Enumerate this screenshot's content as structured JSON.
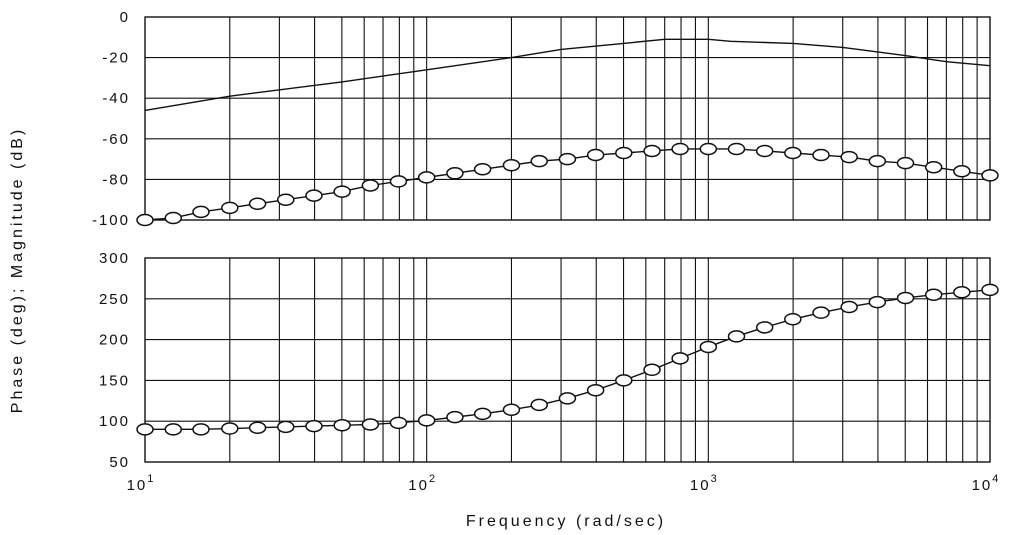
{
  "chart_data": [
    {
      "type": "line",
      "panel": "magnitude",
      "x_scale": "log",
      "xlim": [
        10,
        10000
      ],
      "ylim": [
        -100,
        0
      ],
      "y_ticks": [
        "0",
        "-20",
        "-40",
        "-60",
        "-80",
        "-100"
      ],
      "grid": true,
      "series": [
        {
          "style": "line",
          "x": [
            10,
            20,
            50,
            100,
            200,
            300,
            500,
            700,
            800,
            1000,
            1200,
            2000,
            3000,
            5000,
            7000,
            10000
          ],
          "values": [
            -46,
            -39,
            -32,
            -26,
            -20,
            -16,
            -13,
            -11,
            -11,
            -11,
            -12,
            -13,
            -15,
            -19,
            -22,
            -24
          ]
        },
        {
          "style": "circle-markers",
          "x": [
            10,
            12.6,
            15.8,
            20,
            25.1,
            31.6,
            39.8,
            50.1,
            63.1,
            79.4,
            100,
            126,
            158,
            200,
            251,
            316,
            398,
            501,
            631,
            794,
            1000,
            1259,
            1585,
            1995,
            2512,
            3162,
            3981,
            5012,
            6310,
            7943,
            10000
          ],
          "values": [
            -100,
            -99,
            -96,
            -94,
            -92,
            -90,
            -88,
            -86,
            -83,
            -81,
            -79,
            -77,
            -75,
            -73,
            -71,
            -70,
            -68,
            -67,
            -66,
            -65,
            -65,
            -65,
            -66,
            -67,
            -68,
            -69,
            -71,
            -72,
            -74,
            -76,
            -78
          ]
        }
      ]
    },
    {
      "type": "line",
      "panel": "phase",
      "x_scale": "log",
      "xlim": [
        10,
        10000
      ],
      "ylim": [
        50,
        300
      ],
      "y_ticks": [
        "300",
        "250",
        "200",
        "150",
        "100",
        "50"
      ],
      "x_ticks": [
        {
          "base": "10",
          "exp": "1"
        },
        {
          "base": "10",
          "exp": "2"
        },
        {
          "base": "10",
          "exp": "3"
        },
        {
          "base": "10",
          "exp": "4"
        }
      ],
      "xlabel": "Frequency (rad/sec)",
      "grid": true,
      "series": [
        {
          "style": "line-with-circle-markers",
          "x": [
            10,
            12.6,
            15.8,
            20,
            25.1,
            31.6,
            39.8,
            50.1,
            63.1,
            79.4,
            100,
            126,
            158,
            200,
            251,
            316,
            398,
            501,
            631,
            794,
            1000,
            1259,
            1585,
            1995,
            2512,
            3162,
            3981,
            5012,
            6310,
            7943,
            10000
          ],
          "values": [
            90,
            90,
            90,
            91,
            92,
            93,
            94,
            95,
            96,
            98,
            101,
            105,
            109,
            114,
            120,
            128,
            138,
            150,
            163,
            177,
            191,
            204,
            215,
            225,
            233,
            240,
            246,
            251,
            255,
            258,
            261
          ]
        }
      ]
    }
  ],
  "ylabel": "Phase (deg); Magnitude (dB)"
}
